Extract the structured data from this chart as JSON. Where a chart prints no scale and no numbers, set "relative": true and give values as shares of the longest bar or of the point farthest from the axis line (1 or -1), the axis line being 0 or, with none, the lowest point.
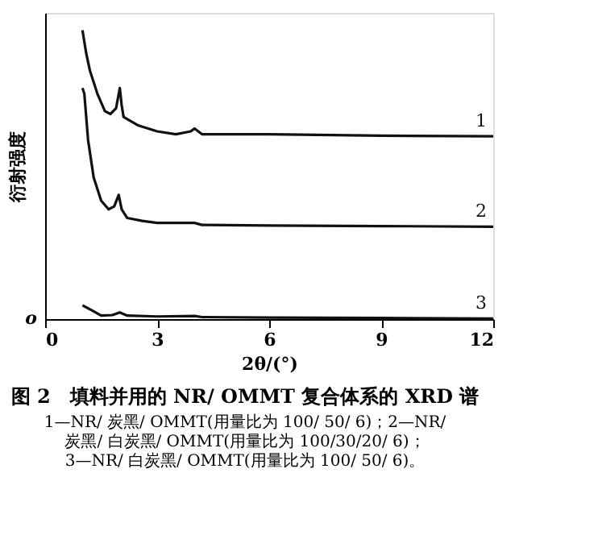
{
  "chart_data": {
    "type": "line",
    "relative": true,
    "title": "图 2　填料并用的 NR/ OMMT 复合体系的 XRD 谱",
    "annotations": [
      "o",
      "1—NR/ 炭黑/ OMMT(用量比为 100/ 50/ 6)；2—NR/",
      "炭黑/ 白炭黑/ OMMT(用量比为 100/30/20/ 6)；",
      "3—NR/ 白炭黑/ OMMT(用量比为 100/ 50/ 6)。"
    ],
    "xlabel": "2θ/(°)",
    "ylabel": "衍射强度",
    "xlim": [
      0,
      12
    ],
    "xticks": [
      0,
      3,
      6,
      9,
      12
    ],
    "grid": false,
    "legend": false,
    "marker": "none",
    "line_style": "solid",
    "series": [
      {
        "name": "1",
        "color": "#111111",
        "x": [
          1.0,
          1.1,
          1.2,
          1.4,
          1.6,
          1.75,
          1.9,
          2.0,
          2.05,
          2.1,
          2.5,
          3,
          3.5,
          3.9,
          4.0,
          4.2,
          6,
          9,
          12
        ],
        "values": [
          1.0,
          0.92,
          0.86,
          0.78,
          0.72,
          0.71,
          0.73,
          0.8,
          0.74,
          0.7,
          0.67,
          0.65,
          0.64,
          0.65,
          0.66,
          0.64,
          0.64,
          0.635,
          0.633
        ]
      },
      {
        "name": "2",
        "color": "#111111",
        "x": [
          1.0,
          1.05,
          1.15,
          1.3,
          1.5,
          1.7,
          1.85,
          1.97,
          2.05,
          2.2,
          2.6,
          3,
          4.0,
          4.2,
          6,
          9,
          12
        ],
        "values": [
          0.8,
          0.78,
          0.62,
          0.49,
          0.41,
          0.38,
          0.39,
          0.43,
          0.38,
          0.35,
          0.34,
          0.333,
          0.333,
          0.326,
          0.324,
          0.322,
          0.32
        ]
      },
      {
        "name": "3",
        "color": "#111111",
        "x": [
          1.0,
          1.3,
          1.5,
          1.8,
          2.0,
          2.2,
          3,
          4,
          4.2,
          6,
          9,
          12
        ],
        "values": [
          0.048,
          0.027,
          0.012,
          0.014,
          0.023,
          0.012,
          0.009,
          0.011,
          0.007,
          0.005,
          0.004,
          0.002
        ]
      }
    ]
  }
}
